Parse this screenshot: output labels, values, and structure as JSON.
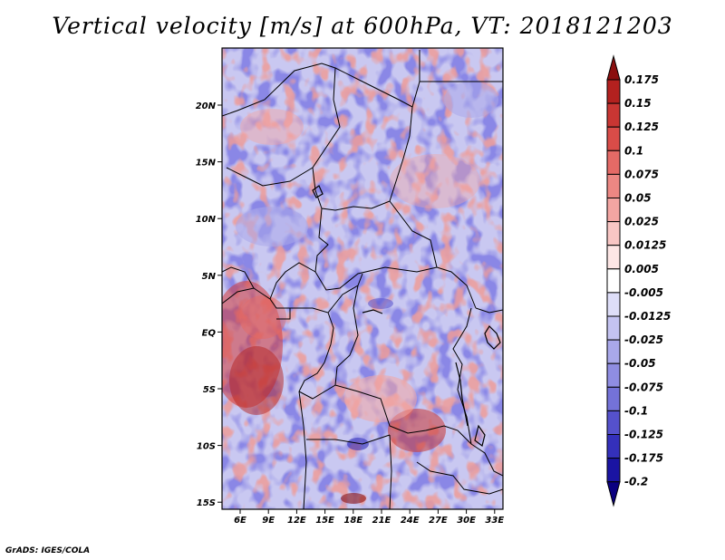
{
  "title": "Vertical velocity [m/s] at 600hPa, VT: 2018121203",
  "credit": "GrADS: IGES/COLA",
  "map": {
    "lat_labels": [
      "20N",
      "15N",
      "10N",
      "5N",
      "EQ",
      "5S",
      "10S",
      "15S"
    ],
    "lon_labels": [
      "6E",
      "9E",
      "12E",
      "15E",
      "18E",
      "21E",
      "24E",
      "27E",
      "30E",
      "33E"
    ]
  },
  "colorbar": {
    "levels": [
      "0.175",
      "0.15",
      "0.125",
      "0.1",
      "0.075",
      "0.05",
      "0.025",
      "0.0125",
      "0.005",
      "-0.005",
      "-0.0125",
      "-0.025",
      "-0.05",
      "-0.075",
      "-0.1",
      "-0.125",
      "-0.175",
      "-0.2"
    ],
    "colors": [
      "#8b0f0f",
      "#b3211f",
      "#c93633",
      "#d94c48",
      "#e46a66",
      "#ec8783",
      "#f3a5a2",
      "#f8c6c4",
      "#fde6e5",
      "#ffffff",
      "#dedef8",
      "#c4c3f1",
      "#a9a8ea",
      "#8f8de2",
      "#7472d8",
      "#5551cc",
      "#3430bb",
      "#1a14a2",
      "#0a0080"
    ]
  }
}
